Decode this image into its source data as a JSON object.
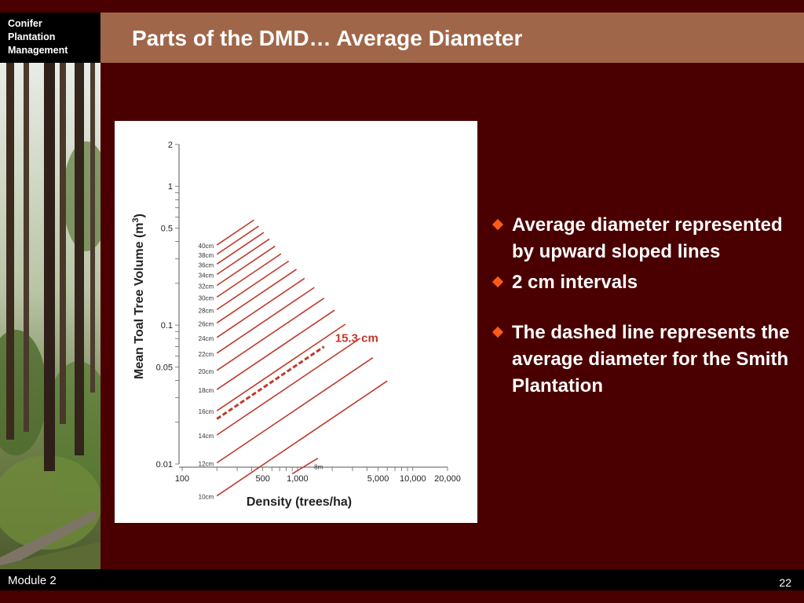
{
  "header": {
    "logo_lines": [
      "Conifer",
      "Plantation",
      "Management"
    ],
    "title": "Parts of the DMD…  Average Diameter"
  },
  "footer": {
    "module": "Module 2",
    "page": "22"
  },
  "bullets": [
    "Average diameter represented by upward sloped lines",
    "2 cm intervals",
    "The dashed line represents the average diameter for the Smith Plantation"
  ],
  "colors": {
    "background": "#4a0000",
    "title_bar": "#a0664a",
    "bullet_marker": "#ff5a1a",
    "diameter_line": "#c0392b",
    "highlight_label": "#c0392b"
  },
  "chart_data": {
    "type": "line",
    "xlabel": "Density (trees/ha)",
    "ylabel": "Mean Toal Tree Volume (m3)",
    "ylabel_parts": {
      "main": "Mean Toal Tree Volume (m",
      "sup": "3",
      "end": ")"
    },
    "x_scale": "log",
    "y_scale": "log",
    "xlim": [
      100,
      20000
    ],
    "ylim": [
      0.01,
      2
    ],
    "x_ticks": [
      100,
      500,
      1000,
      5000,
      10000,
      20000
    ],
    "x_tick_labels": [
      "100",
      "500",
      "1,000",
      "5,000",
      "10,000",
      "20,000"
    ],
    "y_ticks": [
      0.01,
      0.05,
      0.1,
      0.5,
      1,
      2
    ],
    "y_tick_labels": [
      "0.01",
      "0.05",
      "0.1",
      "0.5",
      "1",
      "2"
    ],
    "grid": false,
    "highlight": {
      "label": "15.3 cm",
      "diameter_cm": 15.3,
      "dashed": true
    },
    "series": [
      {
        "name": "8m",
        "x": [
          900,
          1500
        ]
      },
      {
        "name": "10cm",
        "x": [
          200,
          6000
        ]
      },
      {
        "name": "12cm",
        "x": [
          200,
          4500
        ]
      },
      {
        "name": "14cm",
        "x": [
          200,
          3500
        ]
      },
      {
        "name": "16cm",
        "x": [
          200,
          2600
        ]
      },
      {
        "name": "18cm",
        "x": [
          200,
          2100
        ]
      },
      {
        "name": "20cm",
        "x": [
          200,
          1700
        ]
      },
      {
        "name": "22cm",
        "x": [
          200,
          1400
        ]
      },
      {
        "name": "24cm",
        "x": [
          200,
          1150
        ]
      },
      {
        "name": "26cm",
        "x": [
          200,
          980
        ]
      },
      {
        "name": "28cm",
        "x": [
          200,
          840
        ]
      },
      {
        "name": "30cm",
        "x": [
          200,
          720
        ]
      },
      {
        "name": "32cm",
        "x": [
          200,
          640
        ]
      },
      {
        "name": "34cm",
        "x": [
          200,
          570
        ]
      },
      {
        "name": "36cm",
        "x": [
          200,
          510
        ]
      },
      {
        "name": "38cm",
        "x": [
          200,
          460
        ]
      },
      {
        "name": "40cm",
        "x": [
          200,
          420
        ]
      }
    ]
  }
}
